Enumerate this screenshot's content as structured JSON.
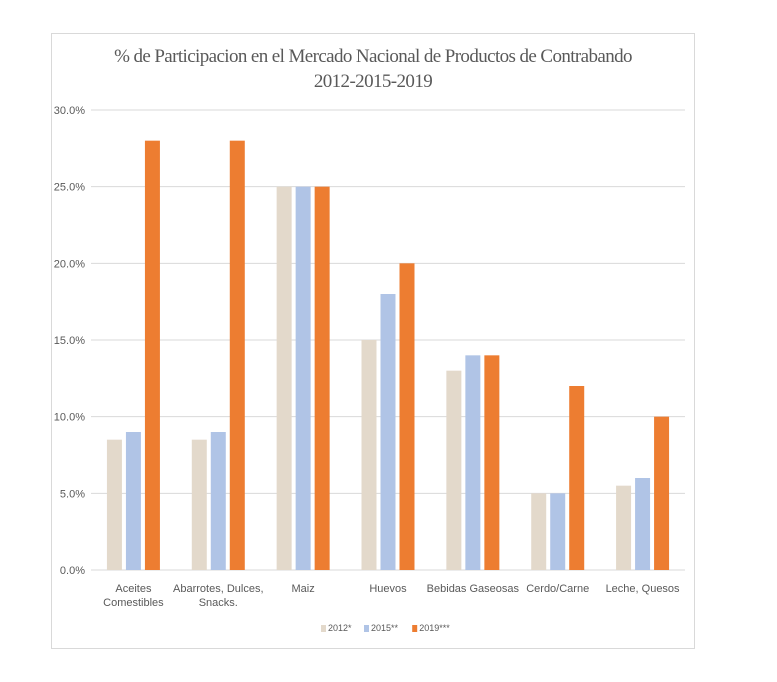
{
  "chart_data": {
    "type": "bar",
    "title": "% de Participacion en el Mercado Nacional de Productos de Contrabando",
    "subtitle": "2012-2015-2019",
    "xlabel": "",
    "ylabel": "",
    "ylim": [
      0,
      30
    ],
    "ytick_step": 5,
    "yticks": [
      "0.0%",
      "5.0%",
      "10.0%",
      "15.0%",
      "20.0%",
      "25.0%",
      "30.0%"
    ],
    "grid": true,
    "legend_position": "bottom",
    "categories": [
      [
        "Aceites",
        "Comestibles"
      ],
      [
        "Abarrotes, Dulces,",
        "Snacks."
      ],
      [
        "Maiz"
      ],
      [
        "Huevos"
      ],
      [
        "Bebidas Gaseosas"
      ],
      [
        "Cerdo/Carne"
      ],
      [
        "Leche, Quesos"
      ]
    ],
    "series": [
      {
        "name": "2012*",
        "color": "#e3d9cb",
        "values": [
          8.5,
          8.5,
          25,
          15,
          13,
          5,
          5.5
        ]
      },
      {
        "name": "2015**",
        "color": "#b0c4e6",
        "values": [
          9,
          9,
          25,
          18,
          14,
          5,
          6
        ]
      },
      {
        "name": "2019***",
        "color": "#ed7d31",
        "values": [
          28,
          28,
          25,
          20,
          14,
          12,
          10
        ]
      }
    ]
  }
}
